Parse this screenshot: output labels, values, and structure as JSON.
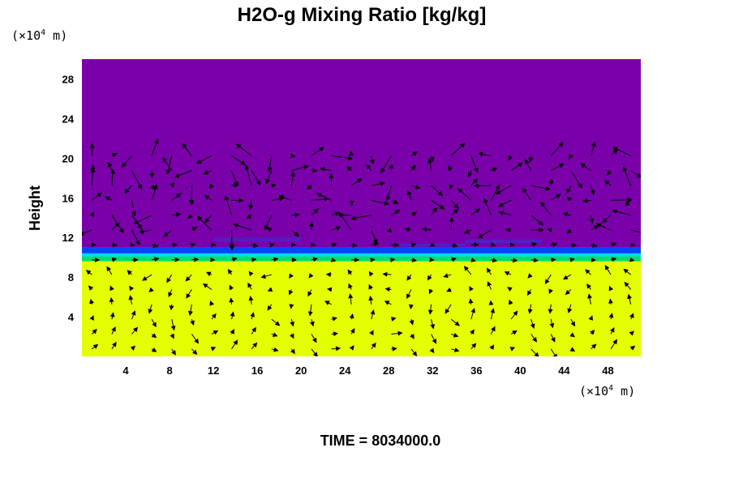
{
  "chart_data": {
    "type": "heatmap",
    "title": "H2O-g Mixing Ratio [kg/kg]",
    "ylabel": "Height",
    "xlabel": "",
    "x_unit": {
      "prefix": "(×10",
      "exp": "4",
      "suffix": " m)"
    },
    "y_unit": {
      "prefix": "(×10",
      "exp": "4",
      "suffix": " m)"
    },
    "xlim": [
      0,
      51
    ],
    "ylim": [
      0,
      30
    ],
    "x_ticks": [
      4,
      8,
      12,
      16,
      20,
      24,
      28,
      32,
      36,
      40,
      44,
      48
    ],
    "y_ticks": [
      4,
      8,
      12,
      16,
      20,
      24,
      28
    ],
    "x_tick_labels": [
      "4",
      "8",
      "12",
      "16",
      "20",
      "24",
      "28",
      "32",
      "36",
      "40",
      "44",
      "48"
    ],
    "y_tick_labels": [
      "4",
      "8",
      "12",
      "16",
      "20",
      "24",
      "28"
    ],
    "grid": false,
    "layers": [
      {
        "from": 0,
        "to": 9.6,
        "color": "#e4ff00",
        "level": "high"
      },
      {
        "from": 9.6,
        "to": 10.1,
        "color": "#00dd70",
        "level": "mid-high"
      },
      {
        "from": 10.1,
        "to": 10.4,
        "color": "#00d8ff",
        "level": "mid"
      },
      {
        "from": 10.4,
        "to": 11.0,
        "color": "#0044ff",
        "level": "low"
      },
      {
        "from": 11.0,
        "to": 30,
        "color": "#7a00aa",
        "level": "lowest"
      }
    ],
    "overlay": "wind-vectors",
    "vector_color": "#000000"
  },
  "time_text": "TIME = 8034000.0"
}
